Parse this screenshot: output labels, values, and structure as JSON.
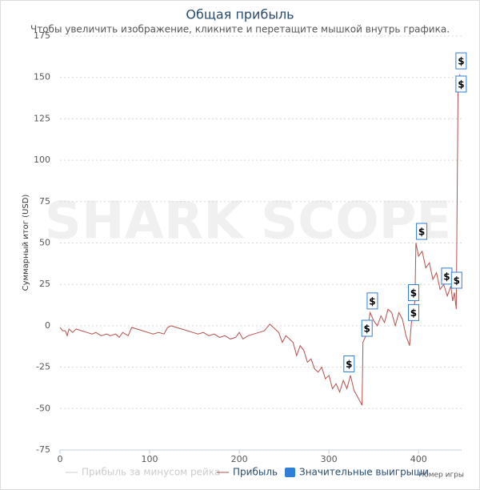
{
  "chart_data": {
    "type": "line",
    "title": "Общая прибыль",
    "subtitle": "Чтобы увеличить изображение, кликните и перетащите мышкой внутрь графика.",
    "watermark": "SHARK SCOPE",
    "y_label": "Суммарный итог (USD)",
    "x_label": "Номер игры",
    "xlim": [
      0,
      448
    ],
    "xticks": [
      0,
      100,
      200,
      300,
      400
    ],
    "ylim": [
      -75,
      175
    ],
    "yticks": [
      -75,
      -50,
      -25,
      0,
      25,
      50,
      75,
      100,
      125,
      150,
      175
    ],
    "grid": true,
    "series": [
      {
        "name": "Прибыль за минусом рейка",
        "color": "#cccccc",
        "hidden": true
      },
      {
        "name": "Прибыль",
        "color": "#b5504c",
        "x": [
          0,
          3,
          6,
          8,
          10,
          14,
          18,
          24,
          30,
          36,
          40,
          46,
          52,
          56,
          62,
          66,
          70,
          76,
          80,
          86,
          92,
          98,
          104,
          110,
          116,
          120,
          124,
          130,
          136,
          142,
          148,
          154,
          160,
          166,
          172,
          178,
          184,
          190,
          196,
          200,
          204,
          210,
          216,
          222,
          228,
          234,
          238,
          244,
          248,
          252,
          256,
          260,
          264,
          268,
          272,
          276,
          280,
          284,
          288,
          292,
          296,
          300,
          304,
          308,
          312,
          316,
          320,
          324,
          328,
          332,
          336,
          337,
          338,
          342,
          346,
          350,
          354,
          358,
          362,
          366,
          370,
          374,
          378,
          382,
          386,
          390,
          392,
          396,
          397,
          400,
          404,
          408,
          412,
          416,
          420,
          424,
          428,
          432,
          436,
          438,
          440,
          442,
          444,
          446
        ],
        "values": [
          -1,
          -3,
          -3,
          -6,
          -2,
          -4,
          -2,
          -3,
          -4,
          -5,
          -4,
          -6,
          -5,
          -6,
          -5,
          -7,
          -4,
          -6,
          -1,
          -2,
          -3,
          -4,
          -5,
          -4,
          -5,
          -1,
          0,
          -1,
          -2,
          -3,
          -4,
          -5,
          -4,
          -6,
          -5,
          -7,
          -6,
          -8,
          -7,
          -4,
          -8,
          -6,
          -5,
          -4,
          -3,
          1,
          -1,
          -4,
          -10,
          -6,
          -8,
          -10,
          -18,
          -12,
          -15,
          -22,
          -20,
          -26,
          -28,
          -25,
          -32,
          -30,
          -38,
          -35,
          -40,
          -33,
          -38,
          -30,
          -39,
          -43,
          -47,
          -48,
          -10,
          -5,
          8,
          3,
          0,
          6,
          2,
          10,
          8,
          0,
          8,
          4,
          -6,
          -12,
          2,
          15,
          50,
          42,
          45,
          35,
          38,
          28,
          32,
          22,
          25,
          18,
          24,
          15,
          20,
          10,
          140,
          152
        ]
      },
      {
        "name": "Значительные выигрыши",
        "color": "#2f7ed8",
        "marker": "flag",
        "x": [
          322,
          342,
          348,
          394,
          394,
          403,
          431,
          442,
          447,
          447
        ],
        "values": [
          -23,
          -1.5,
          15,
          20,
          8,
          57,
          30,
          27.5,
          160,
          146
        ],
        "labels": [
          "$",
          "$",
          "$",
          "$",
          "$",
          "$",
          "$",
          "$",
          "$",
          "$"
        ]
      }
    ]
  }
}
